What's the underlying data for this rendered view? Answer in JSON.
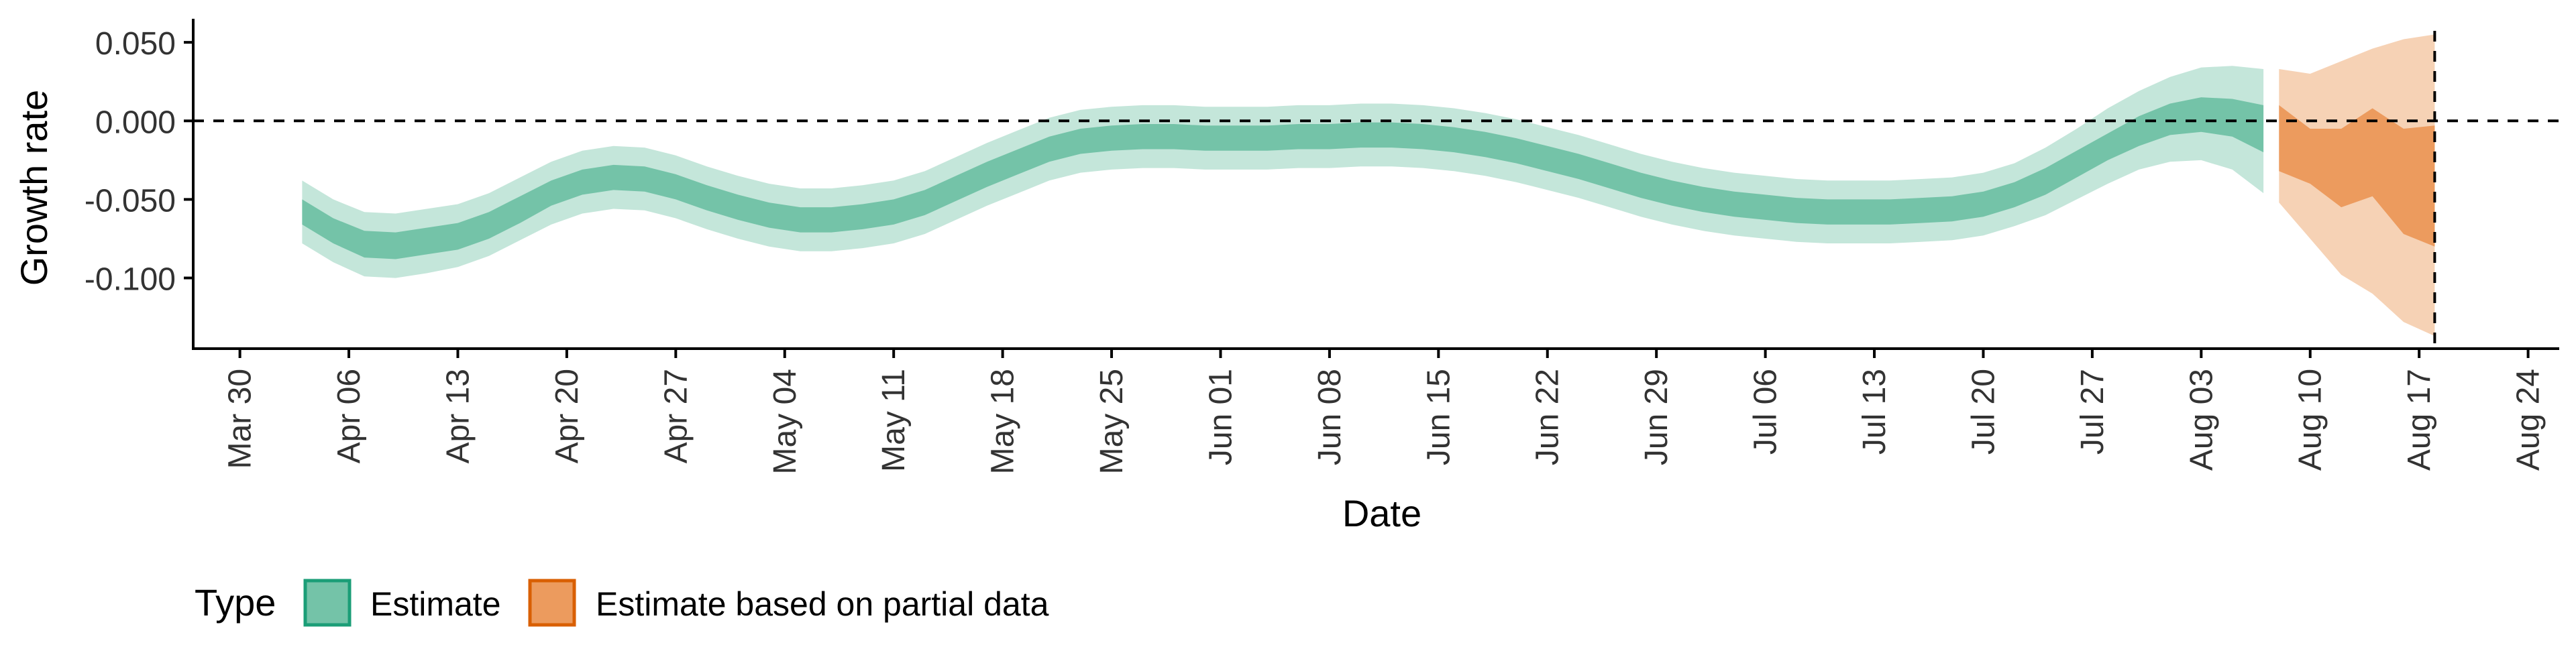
{
  "chart_data": {
    "type": "area",
    "title": "",
    "xlabel": "Date",
    "ylabel": "Growth rate",
    "x_ticks": [
      "Mar 30",
      "Apr 06",
      "Apr 13",
      "Apr 20",
      "Apr 27",
      "May 04",
      "May 11",
      "May 18",
      "May 25",
      "Jun 01",
      "Jun 08",
      "Jun 15",
      "Jun 22",
      "Jun 29",
      "Jul 06",
      "Jul 13",
      "Jul 20",
      "Jul 27",
      "Aug 03",
      "Aug 10",
      "Aug 17",
      "Aug 24"
    ],
    "x_tick_dates": [
      "2020-03-30",
      "2020-04-06",
      "2020-04-13",
      "2020-04-20",
      "2020-04-27",
      "2020-05-04",
      "2020-05-11",
      "2020-05-18",
      "2020-05-25",
      "2020-06-01",
      "2020-06-08",
      "2020-06-15",
      "2020-06-22",
      "2020-06-29",
      "2020-07-06",
      "2020-07-13",
      "2020-07-20",
      "2020-07-27",
      "2020-08-03",
      "2020-08-10",
      "2020-08-17",
      "2020-08-24"
    ],
    "y_ticks": [
      0.05,
      0.0,
      -0.05,
      -0.1
    ],
    "y_tick_labels": [
      "0.050",
      "0.000",
      "-0.050",
      "-0.100"
    ],
    "xlim": [
      "2020-03-27",
      "2020-08-26"
    ],
    "ylim": [
      -0.145,
      0.065
    ],
    "reference_lines": [
      {
        "axis": "y",
        "value": 0.0,
        "style": "dashed"
      },
      {
        "axis": "x",
        "value": "2020-08-18",
        "style": "dashed"
      }
    ],
    "legend": {
      "position": "bottom-left",
      "title": "Type",
      "entries": [
        {
          "label": "Estimate",
          "color": "#1b9e77"
        },
        {
          "label": "Estimate based on partial data",
          "color": "#d95f02"
        }
      ]
    },
    "series": [
      {
        "name": "Estimate",
        "color": "#1b9e77",
        "x": [
          "2020-04-03",
          "2020-04-05",
          "2020-04-07",
          "2020-04-09",
          "2020-04-11",
          "2020-04-13",
          "2020-04-15",
          "2020-04-17",
          "2020-04-19",
          "2020-04-21",
          "2020-04-23",
          "2020-04-25",
          "2020-04-27",
          "2020-04-29",
          "2020-05-01",
          "2020-05-03",
          "2020-05-05",
          "2020-05-07",
          "2020-05-09",
          "2020-05-11",
          "2020-05-13",
          "2020-05-15",
          "2020-05-17",
          "2020-05-19",
          "2020-05-21",
          "2020-05-23",
          "2020-05-25",
          "2020-05-27",
          "2020-05-29",
          "2020-05-31",
          "2020-06-02",
          "2020-06-04",
          "2020-06-06",
          "2020-06-08",
          "2020-06-10",
          "2020-06-12",
          "2020-06-14",
          "2020-06-16",
          "2020-06-18",
          "2020-06-20",
          "2020-06-22",
          "2020-06-24",
          "2020-06-26",
          "2020-06-28",
          "2020-06-30",
          "2020-07-02",
          "2020-07-04",
          "2020-07-06",
          "2020-07-08",
          "2020-07-10",
          "2020-07-12",
          "2020-07-14",
          "2020-07-16",
          "2020-07-18",
          "2020-07-20",
          "2020-07-22",
          "2020-07-24",
          "2020-07-26",
          "2020-07-28",
          "2020-07-30",
          "2020-08-01",
          "2020-08-03",
          "2020-08-05",
          "2020-08-07"
        ],
        "median": [
          -0.058,
          -0.07,
          -0.078,
          -0.079,
          -0.076,
          -0.073,
          -0.066,
          -0.056,
          -0.046,
          -0.039,
          -0.036,
          -0.037,
          -0.042,
          -0.049,
          -0.055,
          -0.06,
          -0.063,
          -0.063,
          -0.061,
          -0.058,
          -0.052,
          -0.043,
          -0.034,
          -0.026,
          -0.018,
          -0.013,
          -0.011,
          -0.01,
          -0.01,
          -0.011,
          -0.011,
          -0.011,
          -0.01,
          -0.01,
          -0.009,
          -0.009,
          -0.01,
          -0.012,
          -0.015,
          -0.019,
          -0.024,
          -0.029,
          -0.035,
          -0.041,
          -0.046,
          -0.05,
          -0.053,
          -0.055,
          -0.057,
          -0.058,
          -0.058,
          -0.058,
          -0.057,
          -0.056,
          -0.053,
          -0.047,
          -0.038,
          -0.027,
          -0.016,
          -0.006,
          0.002,
          0.005,
          0.004,
          -0.002
        ],
        "inner_lower": [
          -0.066,
          -0.078,
          -0.087,
          -0.088,
          -0.085,
          -0.082,
          -0.075,
          -0.065,
          -0.054,
          -0.047,
          -0.044,
          -0.045,
          -0.05,
          -0.057,
          -0.063,
          -0.068,
          -0.071,
          -0.071,
          -0.069,
          -0.066,
          -0.06,
          -0.051,
          -0.042,
          -0.034,
          -0.026,
          -0.021,
          -0.019,
          -0.018,
          -0.018,
          -0.019,
          -0.019,
          -0.019,
          -0.018,
          -0.018,
          -0.017,
          -0.017,
          -0.018,
          -0.02,
          -0.023,
          -0.027,
          -0.032,
          -0.037,
          -0.043,
          -0.049,
          -0.054,
          -0.058,
          -0.061,
          -0.063,
          -0.065,
          -0.066,
          -0.066,
          -0.066,
          -0.065,
          -0.064,
          -0.061,
          -0.055,
          -0.047,
          -0.036,
          -0.025,
          -0.016,
          -0.009,
          -0.007,
          -0.01,
          -0.02
        ],
        "inner_upper": [
          -0.05,
          -0.062,
          -0.07,
          -0.071,
          -0.068,
          -0.065,
          -0.058,
          -0.048,
          -0.038,
          -0.031,
          -0.028,
          -0.029,
          -0.034,
          -0.041,
          -0.047,
          -0.052,
          -0.055,
          -0.055,
          -0.053,
          -0.05,
          -0.044,
          -0.035,
          -0.026,
          -0.018,
          -0.01,
          -0.005,
          -0.003,
          -0.002,
          -0.002,
          -0.003,
          -0.003,
          -0.003,
          -0.002,
          -0.002,
          -0.001,
          -0.001,
          -0.002,
          -0.004,
          -0.007,
          -0.011,
          -0.016,
          -0.021,
          -0.027,
          -0.033,
          -0.038,
          -0.042,
          -0.045,
          -0.047,
          -0.049,
          -0.05,
          -0.05,
          -0.05,
          -0.049,
          -0.048,
          -0.045,
          -0.039,
          -0.03,
          -0.019,
          -0.008,
          0.003,
          0.011,
          0.015,
          0.014,
          0.01
        ],
        "outer_lower": [
          -0.078,
          -0.09,
          -0.099,
          -0.1,
          -0.097,
          -0.093,
          -0.086,
          -0.076,
          -0.066,
          -0.059,
          -0.056,
          -0.057,
          -0.062,
          -0.069,
          -0.075,
          -0.08,
          -0.083,
          -0.083,
          -0.081,
          -0.078,
          -0.072,
          -0.063,
          -0.054,
          -0.046,
          -0.038,
          -0.033,
          -0.031,
          -0.03,
          -0.03,
          -0.031,
          -0.031,
          -0.031,
          -0.03,
          -0.03,
          -0.029,
          -0.029,
          -0.03,
          -0.032,
          -0.035,
          -0.039,
          -0.044,
          -0.049,
          -0.055,
          -0.061,
          -0.066,
          -0.07,
          -0.073,
          -0.075,
          -0.077,
          -0.078,
          -0.078,
          -0.078,
          -0.077,
          -0.076,
          -0.073,
          -0.067,
          -0.06,
          -0.05,
          -0.04,
          -0.031,
          -0.026,
          -0.025,
          -0.031,
          -0.046
        ],
        "outer_upper": [
          -0.038,
          -0.05,
          -0.058,
          -0.059,
          -0.056,
          -0.053,
          -0.046,
          -0.036,
          -0.026,
          -0.019,
          -0.016,
          -0.017,
          -0.022,
          -0.029,
          -0.035,
          -0.04,
          -0.043,
          -0.043,
          -0.041,
          -0.038,
          -0.032,
          -0.023,
          -0.014,
          -0.006,
          0.002,
          0.007,
          0.009,
          0.01,
          0.01,
          0.009,
          0.009,
          0.009,
          0.01,
          0.01,
          0.011,
          0.011,
          0.01,
          0.008,
          0.005,
          0.001,
          -0.004,
          -0.009,
          -0.015,
          -0.021,
          -0.026,
          -0.03,
          -0.033,
          -0.035,
          -0.037,
          -0.038,
          -0.038,
          -0.038,
          -0.037,
          -0.036,
          -0.033,
          -0.027,
          -0.017,
          -0.005,
          0.008,
          0.019,
          0.028,
          0.034,
          0.035,
          0.033
        ]
      },
      {
        "name": "Estimate based on partial data",
        "color": "#d95f02",
        "x": [
          "2020-08-08",
          "2020-08-10",
          "2020-08-12",
          "2020-08-14",
          "2020-08-16",
          "2020-08-18"
        ],
        "median": [
          -0.012,
          -0.025,
          -0.035,
          -0.032,
          -0.045,
          -0.045
        ],
        "inner_lower": [
          -0.032,
          -0.04,
          -0.055,
          -0.048,
          -0.072,
          -0.08
        ],
        "inner_upper": [
          0.01,
          -0.005,
          -0.005,
          0.008,
          -0.005,
          -0.003
        ],
        "outer_lower": [
          -0.052,
          -0.075,
          -0.098,
          -0.11,
          -0.128,
          -0.137
        ],
        "outer_upper": [
          0.033,
          0.03,
          0.038,
          0.046,
          0.052,
          0.055
        ]
      }
    ]
  }
}
